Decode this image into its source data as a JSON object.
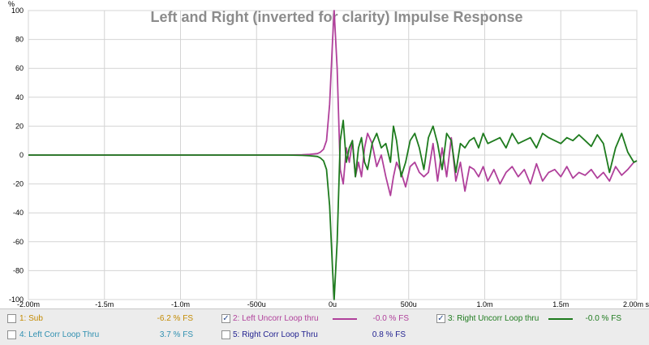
{
  "chart_data": {
    "type": "line",
    "title": "Left and Right (inverted for clarity) Impulse Response",
    "x_unit": "s",
    "xlim": [
      -0.002,
      0.002
    ],
    "ylim": [
      -100,
      100
    ],
    "x_ticks": [
      "-2.00m",
      "-1.5m",
      "-1.0m",
      "-500u",
      "0u",
      "500u",
      "1.0m",
      "1.5m",
      "2.00m s"
    ],
    "y_ticks": [
      "100",
      "80",
      "60",
      "40",
      "20",
      "0",
      "-20",
      "-40",
      "-60",
      "-80",
      "-100"
    ],
    "y_unit": "%",
    "grid": true,
    "series": [
      {
        "name": "Left Uncorr Loop thru",
        "color": "#b0409b",
        "x": [
          -0.002,
          -0.0015,
          -0.001,
          -0.0005,
          -0.0003,
          -0.0002,
          -0.00015,
          -0.0001,
          -8e-05,
          -6e-05,
          -4e-05,
          -2e-05,
          0,
          1e-05,
          3e-05,
          5e-05,
          7e-05,
          9e-05,
          0.00011,
          0.00013,
          0.00015,
          0.00017,
          0.00019,
          0.00021,
          0.00023,
          0.00026,
          0.00029,
          0.00032,
          0.00035,
          0.00038,
          0.0004,
          0.00042,
          0.00045,
          0.00048,
          0.00051,
          0.00054,
          0.00057,
          0.0006,
          0.00063,
          0.00066,
          0.00069,
          0.00072,
          0.00075,
          0.00078,
          0.00081,
          0.00084,
          0.00087,
          0.0009,
          0.00093,
          0.00096,
          0.00099,
          0.00102,
          0.00106,
          0.0011,
          0.00114,
          0.00118,
          0.00122,
          0.00126,
          0.0013,
          0.00134,
          0.00138,
          0.00142,
          0.00146,
          0.0015,
          0.00154,
          0.00158,
          0.00162,
          0.00166,
          0.0017,
          0.00174,
          0.00178,
          0.00182,
          0.00186,
          0.0019,
          0.00194,
          0.00198,
          0.002
        ],
        "y": [
          0,
          0,
          0,
          0,
          0,
          0.2,
          0.5,
          1,
          2,
          4,
          10,
          35,
          80,
          100,
          60,
          -10,
          -20,
          5,
          -5,
          10,
          -15,
          -5,
          -15,
          5,
          15,
          8,
          -8,
          0,
          -15,
          -28,
          -15,
          -5,
          -12,
          -22,
          -8,
          -5,
          -12,
          -15,
          -12,
          8,
          -18,
          5,
          -15,
          12,
          -18,
          -5,
          -25,
          -8,
          -10,
          -15,
          -8,
          -18,
          -10,
          -20,
          -12,
          -8,
          -15,
          -10,
          -20,
          -6,
          -18,
          -12,
          -10,
          -15,
          -8,
          -16,
          -12,
          -14,
          -10,
          -16,
          -12,
          -18,
          -8,
          -14,
          -10,
          -5,
          -4
        ]
      },
      {
        "name": "Right Uncorr Loop thru",
        "color": "#1e7b1e",
        "x": [
          -0.002,
          -0.0015,
          -0.001,
          -0.0005,
          -0.0003,
          -0.0002,
          -0.00015,
          -0.0001,
          -8e-05,
          -6e-05,
          -4e-05,
          -2e-05,
          0,
          1e-05,
          3e-05,
          5e-05,
          7e-05,
          9e-05,
          0.00011,
          0.00013,
          0.00015,
          0.00017,
          0.00019,
          0.00021,
          0.00023,
          0.00026,
          0.00029,
          0.00032,
          0.00035,
          0.00038,
          0.0004,
          0.00042,
          0.00045,
          0.00048,
          0.00051,
          0.00054,
          0.00057,
          0.0006,
          0.00063,
          0.00066,
          0.00069,
          0.00072,
          0.00075,
          0.00078,
          0.00081,
          0.00084,
          0.00087,
          0.0009,
          0.00093,
          0.00096,
          0.00099,
          0.00102,
          0.00106,
          0.0011,
          0.00114,
          0.00118,
          0.00122,
          0.00126,
          0.0013,
          0.00134,
          0.00138,
          0.00142,
          0.00146,
          0.0015,
          0.00154,
          0.00158,
          0.00162,
          0.00166,
          0.0017,
          0.00174,
          0.00178,
          0.00182,
          0.00186,
          0.0019,
          0.00194,
          0.00198,
          0.002
        ],
        "y": [
          0,
          0,
          0,
          0,
          0,
          -0.2,
          -0.5,
          -1,
          -2,
          -4,
          -10,
          -35,
          -80,
          -100,
          -60,
          10,
          24,
          -5,
          5,
          10,
          -15,
          5,
          12,
          -5,
          -10,
          8,
          15,
          5,
          8,
          -5,
          20,
          10,
          -15,
          -5,
          10,
          15,
          5,
          -10,
          12,
          20,
          8,
          -10,
          15,
          10,
          -12,
          8,
          5,
          10,
          12,
          5,
          15,
          8,
          10,
          12,
          5,
          15,
          8,
          10,
          12,
          5,
          15,
          12,
          10,
          8,
          12,
          10,
          14,
          10,
          6,
          14,
          8,
          -12,
          5,
          15,
          2,
          -5,
          -4
        ]
      }
    ]
  },
  "legend": {
    "items": [
      {
        "index": "1",
        "label": "1: Sub",
        "value": "-6.2 % FS",
        "checked": false,
        "text_color": "#c38a00",
        "value_color": "#c38a00"
      },
      {
        "index": "2",
        "label": "2: Left Uncorr Loop thru",
        "value": "-0.0 % FS",
        "checked": true,
        "text_color": "#b0409b",
        "value_color": "#b0409b"
      },
      {
        "index": "3",
        "label": "3: Right Uncorr Loop thru",
        "value": "-0.0 % FS",
        "checked": true,
        "text_color": "#1e7b1e",
        "value_color": "#1e7b1e"
      },
      {
        "index": "4",
        "label": "4: Left Corr Loop Thru",
        "value": "3.7 % FS",
        "checked": false,
        "text_color": "#2f8fb0",
        "value_color": "#2f8fb0"
      },
      {
        "index": "5",
        "label": "5: Right Corr Loop Thru",
        "value": "0.8 % FS",
        "checked": false,
        "text_color": "#1f1f8f",
        "value_color": "#1f1f8f"
      }
    ],
    "check_glyph": "✓"
  }
}
